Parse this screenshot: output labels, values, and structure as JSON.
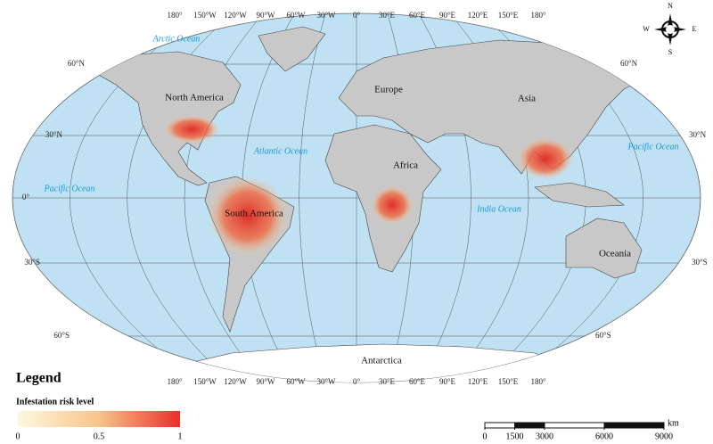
{
  "map": {
    "longitude_labels": [
      "180°",
      "150°W",
      "120°W",
      "90°W",
      "60°W",
      "30°W",
      "0°",
      "30°E",
      "60°E",
      "90°E",
      "120°E",
      "150°E",
      "180°"
    ],
    "latitude_labels_left": [
      "60°N",
      "30°N",
      "0°",
      "30°S",
      "60°S"
    ],
    "latitude_labels_right": [
      "60°N",
      "30°N",
      "30°S",
      "60°S"
    ],
    "oceans": [
      "Arctic Ocean",
      "Atlantic Ocean",
      "Pacific Ocean",
      "Pacific Ocean",
      "India Ocean"
    ],
    "continents": [
      "North America",
      "Europe",
      "Asia",
      "Africa",
      "South America",
      "Oceania",
      "Antarctica"
    ],
    "compass": {
      "n": "N",
      "w": "W",
      "e": "E",
      "s": "S"
    }
  },
  "legend": {
    "title": "Legend",
    "subtitle": "Infestation risk level",
    "ticks": [
      0,
      0.5,
      1
    ]
  },
  "scale_bar": {
    "unit": "km",
    "ticks": [
      0,
      1500,
      3000,
      6000,
      9000
    ]
  }
}
